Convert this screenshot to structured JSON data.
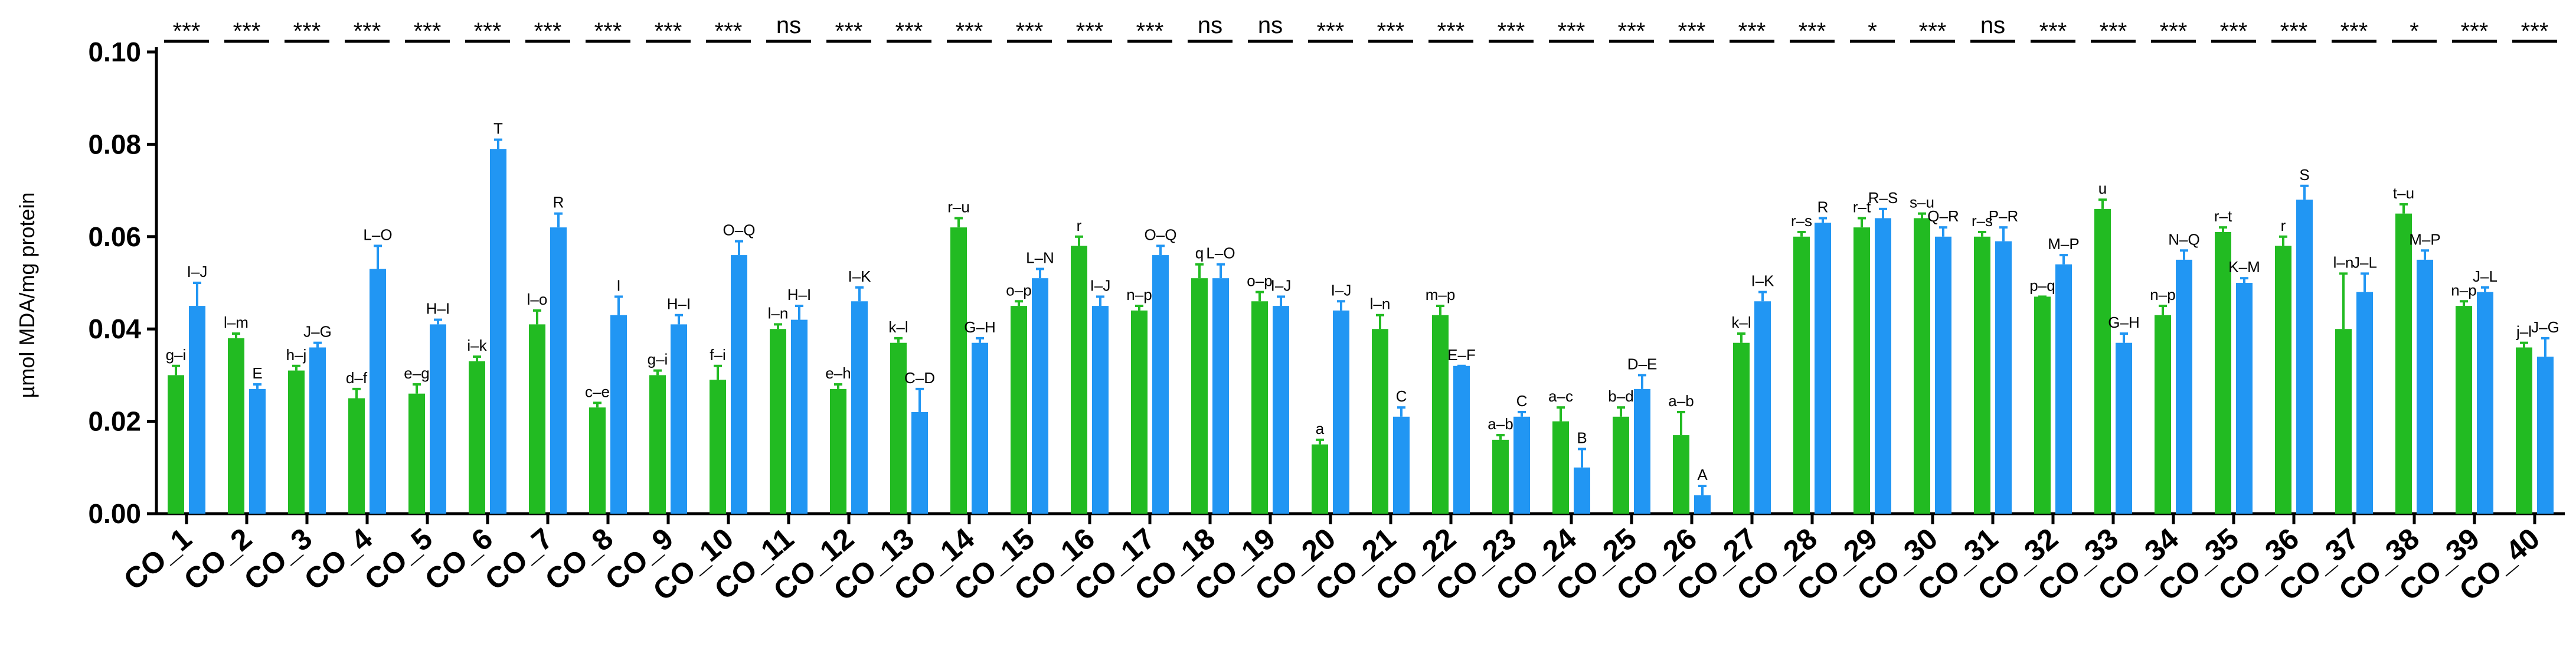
{
  "chart_data": {
    "type": "bar",
    "title": "",
    "xlabel": "",
    "ylabel": "µmol MDA/mg protein",
    "ylim": [
      0,
      0.1
    ],
    "yticks": [
      "0.00",
      "0.02",
      "0.04",
      "0.06",
      "0.08",
      "0.10"
    ],
    "grid": false,
    "categories": [
      "CO_1",
      "CO_2",
      "CO_3",
      "CO_4",
      "CO_5",
      "CO_6",
      "CO_7",
      "CO_8",
      "CO_9",
      "CO_10",
      "CO_11",
      "CO_12",
      "CO_13",
      "CO_14",
      "CO_15",
      "CO_16",
      "CO_17",
      "CO_18",
      "CO_19",
      "CO_20",
      "CO_21",
      "CO_22",
      "CO_23",
      "CO_24",
      "CO_25",
      "CO_26",
      "CO_27",
      "CO_28",
      "CO_29",
      "CO_30",
      "CO_31",
      "CO_32",
      "CO_33",
      "CO_34",
      "CO_35",
      "CO_36",
      "CO_37",
      "CO_38",
      "CO_39",
      "CO_40"
    ],
    "series": [
      {
        "name": "green",
        "color": "#22bb22",
        "values": [
          0.03,
          0.038,
          0.031,
          0.025,
          0.026,
          0.033,
          0.041,
          0.023,
          0.03,
          0.029,
          0.04,
          0.027,
          0.037,
          0.062,
          0.045,
          0.058,
          0.044,
          0.051,
          0.046,
          0.015,
          0.04,
          0.043,
          0.016,
          0.02,
          0.021,
          0.017,
          0.037,
          0.06,
          0.062,
          0.064,
          0.06,
          0.047,
          0.066,
          0.043,
          0.061,
          0.058,
          0.04,
          0.065,
          0.045,
          0.036
        ],
        "errors": [
          0.002,
          0.001,
          0.001,
          0.002,
          0.002,
          0.001,
          0.003,
          0.001,
          0.001,
          0.003,
          0.001,
          0.001,
          0.001,
          0.002,
          0.001,
          0.002,
          0.001,
          0.003,
          0.002,
          0.001,
          0.003,
          0.002,
          0.001,
          0.003,
          0.002,
          0.005,
          0.002,
          0.001,
          0.002,
          0.001,
          0.001,
          0.0,
          0.002,
          0.002,
          0.001,
          0.002,
          0.012,
          0.002,
          0.001,
          0.001
        ],
        "letters": [
          "g–i",
          "l–m",
          "h–j",
          "d–f",
          "e–g",
          "i–k",
          "l–o",
          "c–e",
          "g–i",
          "f–i",
          "l–n",
          "e–h",
          "k–l",
          "r–u",
          "o–p",
          "r",
          "n–p",
          "q",
          "o–p",
          "a",
          "l–n",
          "m–p",
          "a–b",
          "a–c",
          "b–d",
          "a–b",
          "k–l",
          "r–s",
          "r–t",
          "s–u",
          "r–s",
          "p–q",
          "u",
          "n–p",
          "r–t",
          "r",
          "l–n",
          "t–u",
          "n–p",
          "j–l"
        ]
      },
      {
        "name": "blue",
        "color": "#2196f3",
        "values": [
          0.045,
          0.027,
          0.036,
          0.053,
          0.041,
          0.079,
          0.062,
          0.043,
          0.041,
          0.056,
          0.042,
          0.046,
          0.022,
          0.037,
          0.051,
          0.045,
          0.056,
          0.051,
          0.045,
          0.044,
          0.021,
          0.032,
          0.021,
          0.01,
          0.027,
          0.004,
          0.046,
          0.063,
          0.064,
          0.06,
          0.059,
          0.054,
          0.037,
          0.055,
          0.05,
          0.068,
          0.048,
          0.055,
          0.048,
          0.034
        ],
        "errors": [
          0.005,
          0.001,
          0.001,
          0.005,
          0.001,
          0.002,
          0.003,
          0.004,
          0.002,
          0.003,
          0.003,
          0.003,
          0.005,
          0.001,
          0.002,
          0.002,
          0.002,
          0.003,
          0.002,
          0.002,
          0.002,
          0.0,
          0.001,
          0.004,
          0.003,
          0.002,
          0.002,
          0.001,
          0.002,
          0.002,
          0.003,
          0.002,
          0.002,
          0.002,
          0.001,
          0.003,
          0.004,
          0.002,
          0.001,
          0.004
        ],
        "letters": [
          "I–J",
          "E",
          "J–G",
          "L–O",
          "H–I",
          "T",
          "R",
          "I",
          "H–I",
          "O–Q",
          "H–I",
          "I–K",
          "C–D",
          "G–H",
          "L–N",
          "I–J",
          "O–Q",
          "L–O",
          "I–J",
          "I–J",
          "C",
          "E–F",
          "C",
          "B",
          "D–E",
          "A",
          "I–K",
          "R",
          "R–S",
          "Q–R",
          "P–R",
          "M–P",
          "G–H",
          "N–Q",
          "K–M",
          "S",
          "J–L",
          "M–P",
          "J–L",
          "J–G"
        ]
      }
    ],
    "significance": [
      "***",
      "***",
      "***",
      "***",
      "***",
      "***",
      "***",
      "***",
      "***",
      "***",
      "ns",
      "***",
      "***",
      "***",
      "***",
      "***",
      "***",
      "ns",
      "ns",
      "***",
      "***",
      "***",
      "***",
      "***",
      "***",
      "***",
      "***",
      "***",
      "*",
      "***",
      "ns",
      "***",
      "***",
      "***",
      "***",
      "***",
      "***",
      "*",
      "***",
      "***"
    ]
  }
}
